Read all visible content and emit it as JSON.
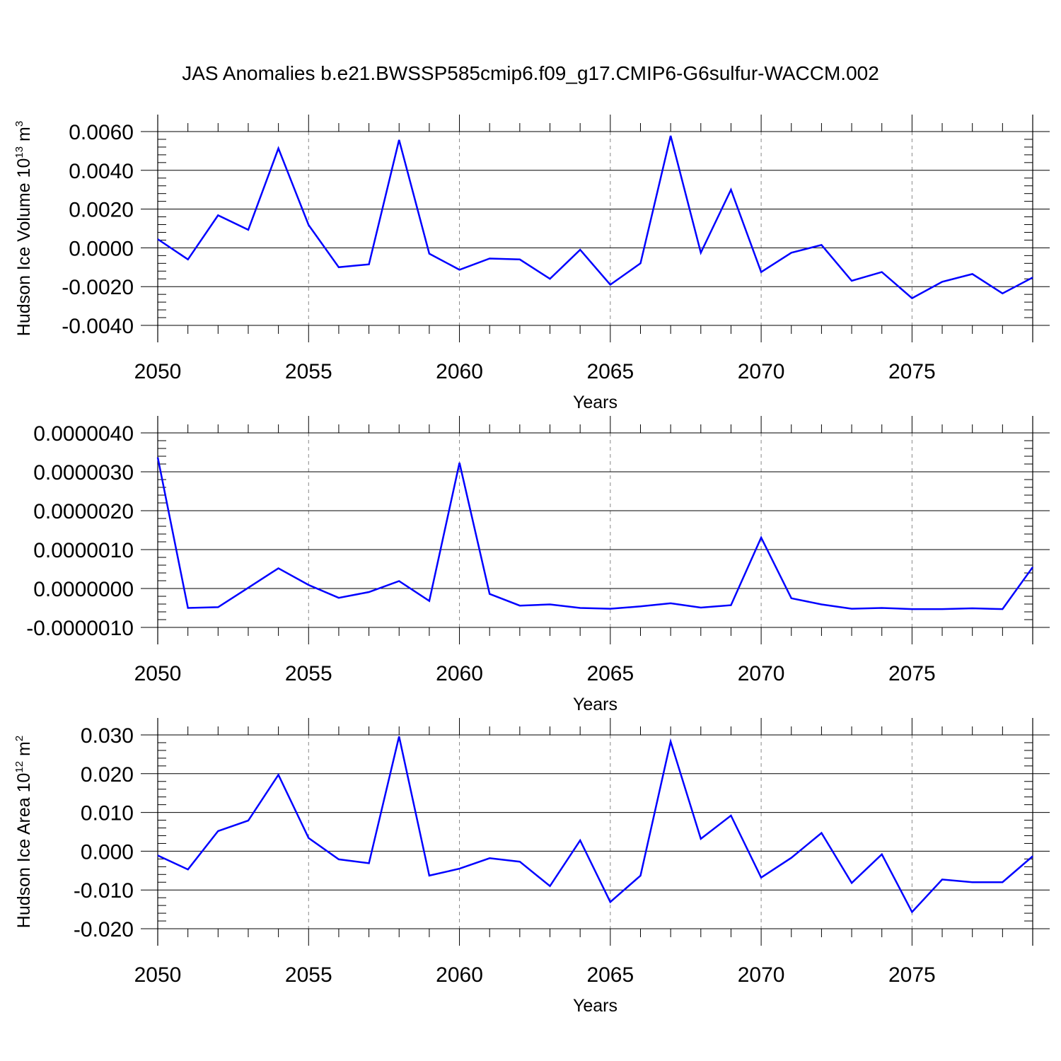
{
  "title": "JAS Anomalies b.e21.BWSSP585cmip6.f09_g17.CMIP6-G6sulfur-WACCM.002",
  "colors": {
    "series": "#0000ff",
    "axis": "#000000",
    "grid": "#888888"
  },
  "chart_data": [
    {
      "type": "line",
      "ylabel": "Hudson Ice Volume 10",
      "ylabel_exponent": "13",
      "ylabel_unit": "m",
      "ylabel_unit_power": "3",
      "xlabel": "Years",
      "xlim": [
        2050,
        2079
      ],
      "ylim": [
        -0.004,
        0.006
      ],
      "yticks": [
        0.006,
        0.004,
        0.002,
        0.0,
        -0.002,
        -0.004
      ],
      "yticklabels": [
        "0.0060",
        "0.0040",
        "0.0020",
        "0.0000",
        "-0.0020",
        "-0.0040"
      ],
      "xticks": [
        2050,
        2055,
        2060,
        2065,
        2070,
        2075
      ],
      "xticklabels": [
        "2050",
        "2055",
        "2060",
        "2065",
        "2070",
        "2075"
      ],
      "x": [
        2050,
        2051,
        2052,
        2053,
        2054,
        2055,
        2056,
        2057,
        2058,
        2059,
        2060,
        2061,
        2062,
        2063,
        2064,
        2065,
        2066,
        2067,
        2068,
        2069,
        2070,
        2071,
        2072,
        2073,
        2074,
        2075,
        2076,
        2077,
        2078,
        2079
      ],
      "values": [
        0.00045,
        -0.0006,
        0.00168,
        0.00093,
        0.00513,
        0.00118,
        -0.001,
        -0.00085,
        0.00557,
        -0.0003,
        -0.00113,
        -0.00055,
        -0.0006,
        -0.0016,
        -0.0001,
        -0.0019,
        -0.0008,
        0.00578,
        -0.00025,
        0.003,
        -0.00125,
        -0.00025,
        0.00015,
        -0.0017,
        -0.00125,
        -0.0026,
        -0.00175,
        -0.00135,
        -0.00235,
        -0.00153
      ]
    },
    {
      "type": "line",
      "ylabel": "",
      "xlabel": "Years",
      "xlim": [
        2050,
        2079
      ],
      "ylim": [
        -1e-06,
        4e-06
      ],
      "yticks": [
        4e-06,
        3e-06,
        2e-06,
        1e-06,
        0.0,
        -1e-06
      ],
      "yticklabels": [
        "0.0000040",
        "0.0000030",
        "0.0000020",
        "0.0000010",
        "0.0000000",
        "-0.0000010"
      ],
      "xticks": [
        2050,
        2055,
        2060,
        2065,
        2070,
        2075
      ],
      "xticklabels": [
        "2050",
        "2055",
        "2060",
        "2065",
        "2070",
        "2075"
      ],
      "x": [
        2050,
        2051,
        2052,
        2053,
        2054,
        2055,
        2056,
        2057,
        2058,
        2059,
        2060,
        2061,
        2062,
        2063,
        2064,
        2065,
        2066,
        2067,
        2068,
        2069,
        2070,
        2071,
        2072,
        2073,
        2074,
        2075,
        2076,
        2077,
        2078,
        2079
      ],
      "values": [
        3.37e-06,
        -5e-07,
        -4.8e-07,
        2e-08,
        5.2e-07,
        9e-08,
        -2.4e-07,
        -9e-08,
        1.9e-07,
        -3.2e-07,
        3.23e-06,
        -1.4e-07,
        -4.4e-07,
        -4.1e-07,
        -5e-07,
        -5.2e-07,
        -4.6e-07,
        -3.8e-07,
        -4.9e-07,
        -4.3e-07,
        1.31e-06,
        -2.5e-07,
        -4.1e-07,
        -5.2e-07,
        -5e-07,
        -5.3e-07,
        -5.3e-07,
        -5.1e-07,
        -5.3e-07,
        5.5e-07
      ]
    },
    {
      "type": "line",
      "ylabel": "Hudson Ice Area 10",
      "ylabel_exponent": "12",
      "ylabel_unit": "m",
      "ylabel_unit_power": "2",
      "xlabel": "Years",
      "xlim": [
        2050,
        2079
      ],
      "ylim": [
        -0.02,
        0.03
      ],
      "yticks": [
        0.03,
        0.02,
        0.01,
        0.0,
        -0.01,
        -0.02
      ],
      "yticklabels": [
        "0.030",
        "0.020",
        "0.010",
        "0.000",
        "-0.010",
        "-0.020"
      ],
      "xticks": [
        2050,
        2055,
        2060,
        2065,
        2070,
        2075
      ],
      "xticklabels": [
        "2050",
        "2055",
        "2060",
        "2065",
        "2070",
        "2075"
      ],
      "x": [
        2050,
        2051,
        2052,
        2053,
        2054,
        2055,
        2056,
        2057,
        2058,
        2059,
        2060,
        2061,
        2062,
        2063,
        2064,
        2065,
        2066,
        2067,
        2068,
        2069,
        2070,
        2071,
        2072,
        2073,
        2074,
        2075,
        2076,
        2077,
        2078,
        2079
      ],
      "values": [
        -0.0011,
        -0.0047,
        0.0052,
        0.0079,
        0.0197,
        0.0034,
        -0.0021,
        -0.0031,
        0.0296,
        -0.0063,
        -0.0045,
        -0.0018,
        -0.0027,
        -0.009,
        0.0028,
        -0.0131,
        -0.0063,
        0.0283,
        0.0032,
        0.0092,
        -0.0068,
        -0.0017,
        0.0047,
        -0.0082,
        -0.0008,
        -0.0157,
        -0.0073,
        -0.008,
        -0.008,
        -0.0013
      ]
    }
  ]
}
